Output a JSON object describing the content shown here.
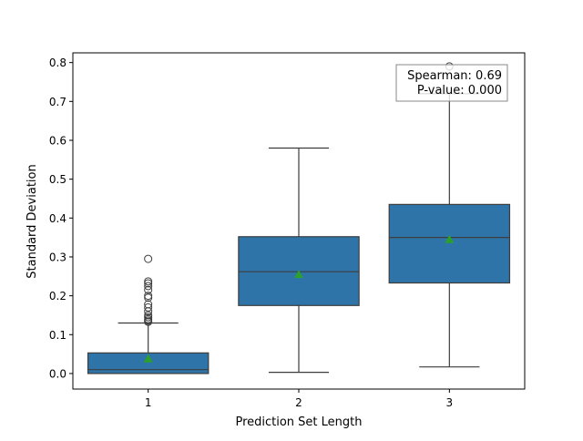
{
  "chart_data": {
    "type": "box",
    "xlabel": "Prediction Set Length",
    "ylabel": "Standard Deviation",
    "categories": [
      "1",
      "2",
      "3"
    ],
    "ylim": [
      -0.04,
      0.825
    ],
    "yticks": [
      0.0,
      0.1,
      0.2,
      0.3,
      0.4,
      0.5,
      0.6,
      0.7,
      0.8
    ],
    "ytick_labels": [
      "0.0",
      "0.1",
      "0.2",
      "0.3",
      "0.4",
      "0.5",
      "0.6",
      "0.7",
      "0.8"
    ],
    "grid": false,
    "box_color": "#2e74a8",
    "mean_color": "#2ca02c",
    "boxes": [
      {
        "category": "1",
        "whisker_low": 0.0,
        "q1": 0.0,
        "median": 0.01,
        "q3": 0.053,
        "whisker_high": 0.13,
        "mean": 0.038,
        "outliers": [
          0.133,
          0.136,
          0.14,
          0.145,
          0.15,
          0.16,
          0.17,
          0.178,
          0.195,
          0.2,
          0.215,
          0.225,
          0.232,
          0.237,
          0.295
        ]
      },
      {
        "category": "2",
        "whisker_low": 0.003,
        "q1": 0.175,
        "median": 0.262,
        "q3": 0.352,
        "whisker_high": 0.58,
        "mean": 0.255,
        "outliers": []
      },
      {
        "category": "3",
        "whisker_low": 0.017,
        "q1": 0.233,
        "median": 0.35,
        "q3": 0.435,
        "whisker_high": 0.72,
        "mean": 0.345,
        "outliers": [
          0.79
        ]
      }
    ],
    "annotation": {
      "line1": "Spearman: 0.69",
      "line2": "P-value: 0.000",
      "placement": "top-right"
    }
  }
}
